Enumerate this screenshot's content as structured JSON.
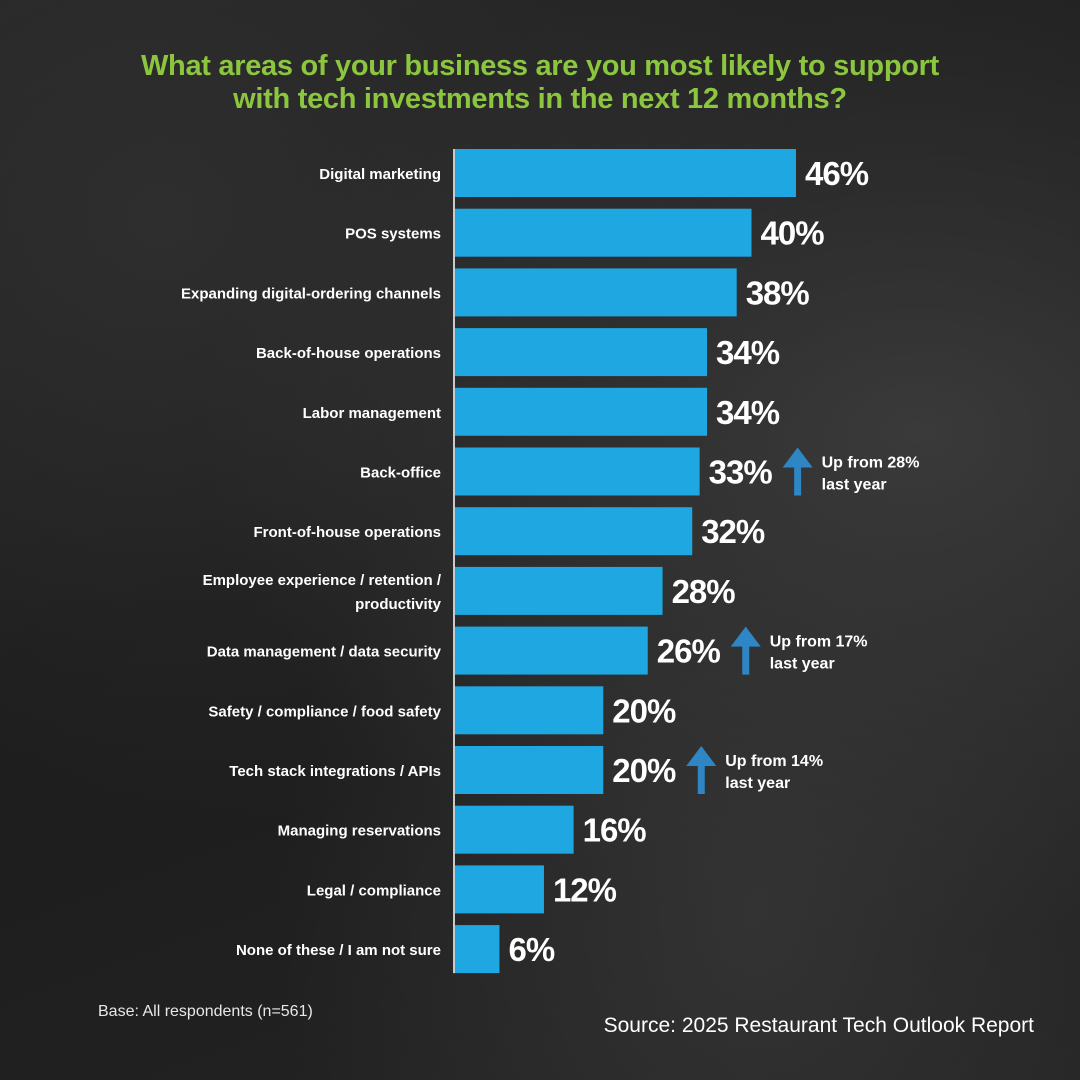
{
  "chart_data": {
    "type": "bar",
    "orientation": "horizontal",
    "title_lines": [
      "What areas of your business are you most likely to support",
      "with tech investments in the next 12 months?"
    ],
    "categories": [
      [
        "Digital marketing"
      ],
      [
        "POS systems"
      ],
      [
        "Expanding digital-ordering channels"
      ],
      [
        "Back-of-house operations"
      ],
      [
        "Labor management"
      ],
      [
        "Back-office"
      ],
      [
        "Front-of-house operations"
      ],
      [
        "Employee experience / retention /",
        "productivity"
      ],
      [
        "Data management / data security"
      ],
      [
        "Safety / compliance / food safety"
      ],
      [
        "Tech stack integrations / APIs"
      ],
      [
        "Managing reservations"
      ],
      [
        "Legal / compliance"
      ],
      [
        "None of these / I am not sure"
      ]
    ],
    "values": [
      46,
      40,
      38,
      34,
      34,
      33,
      32,
      28,
      26,
      20,
      20,
      16,
      12,
      6
    ],
    "value_labels": [
      "46%",
      "40%",
      "38%",
      "34%",
      "34%",
      "33%",
      "32%",
      "28%",
      "26%",
      "20%",
      "20%",
      "16%",
      "12%",
      "6%"
    ],
    "annotations": [
      {
        "category_index": 5,
        "lines": [
          "Up from 28%",
          "last year"
        ]
      },
      {
        "category_index": 8,
        "lines": [
          "Up from 17%",
          "last year"
        ]
      },
      {
        "category_index": 10,
        "lines": [
          "Up from 14%",
          "last year"
        ]
      }
    ],
    "xlim": [
      0,
      46
    ],
    "grid": false,
    "legend": "none",
    "colors": {
      "bar": "#1ea7e1",
      "title": "#8cc63f",
      "arrow": "#2f86c4",
      "text": "#ffffff",
      "axis": "#ffffff"
    }
  },
  "footer": {
    "base": "Base: All respondents (n=561)",
    "source": "Source: 2025 Restaurant Tech Outlook Report"
  }
}
